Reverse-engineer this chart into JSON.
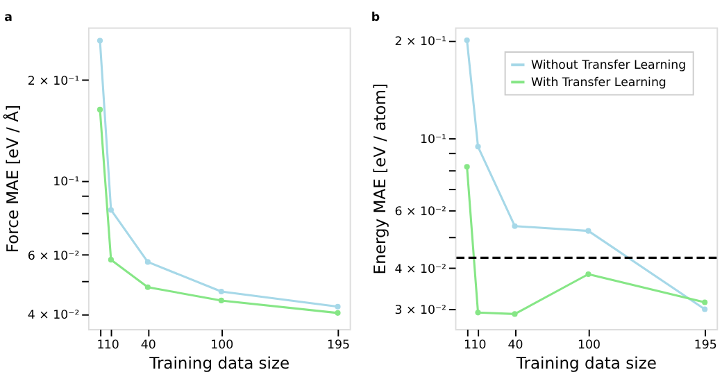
{
  "chart_data": [
    {
      "type": "line",
      "title": "a",
      "xlabel": "Training data size",
      "ylabel": "Force MAE [eV / Å]",
      "log": "y",
      "grid": false,
      "marker": "circle",
      "line_style": "solid",
      "x": [
        1,
        10,
        40,
        100,
        195
      ],
      "xlim": [
        -8.7,
        204.7
      ],
      "xticks": [
        1,
        10,
        40,
        100,
        195
      ],
      "ylim": [
        0.036,
        0.287
      ],
      "yticks": [
        {
          "value": 0.2,
          "label": "2 × 10⁻¹"
        },
        {
          "value": 0.1,
          "label": "10⁻¹"
        },
        {
          "value": 0.09,
          "label": null
        },
        {
          "value": 0.08,
          "label": null
        },
        {
          "value": 0.07,
          "label": null
        },
        {
          "value": 0.06,
          "label": "6 × 10⁻²"
        },
        {
          "value": 0.05,
          "label": null
        },
        {
          "value": 0.04,
          "label": "4 × 10⁻²"
        }
      ],
      "series": [
        {
          "color": "#a6d8e8",
          "values": [
            0.262,
            0.0817,
            0.0571,
            0.0466,
            0.042
          ]
        },
        {
          "color": "#86e686",
          "values": [
            0.163,
            0.058,
            0.048,
            0.0438,
            0.0402
          ]
        }
      ]
    },
    {
      "type": "line",
      "title": "b",
      "xlabel": "Training data size",
      "ylabel": "Energy MAE [eV / atom]",
      "log": "y",
      "grid": false,
      "marker": "circle",
      "line_style": "solid",
      "legend": "top right",
      "x": [
        1,
        10,
        40,
        100,
        195
      ],
      "xlim": [
        -8.7,
        204.7
      ],
      "xticks": [
        1,
        10,
        40,
        100,
        195
      ],
      "ylim": [
        0.026,
        0.219
      ],
      "yticks": [
        {
          "value": 0.2,
          "label": "2 × 10⁻¹"
        },
        {
          "value": 0.1,
          "label": "10⁻¹"
        },
        {
          "value": 0.09,
          "label": null
        },
        {
          "value": 0.08,
          "label": null
        },
        {
          "value": 0.07,
          "label": null
        },
        {
          "value": 0.06,
          "label": "6 × 10⁻²"
        },
        {
          "value": 0.05,
          "label": null
        },
        {
          "value": 0.04,
          "label": "4 × 10⁻²"
        },
        {
          "value": 0.03,
          "label": "3 × 10⁻²"
        }
      ],
      "series": [
        {
          "name": "Without Transfer Learning",
          "color": "#a6d8e8",
          "values": [
            0.2,
            0.0943,
            0.0538,
            0.052,
            0.0299
          ]
        },
        {
          "name": "With Transfer Learning",
          "color": "#86e686",
          "values": [
            0.0818,
            0.0292,
            0.0289,
            0.0383,
            0.0314
          ]
        }
      ],
      "ref_lines": [
        {
          "axis": "y",
          "value": 0.043,
          "color": "#000000",
          "line_style": "dashed"
        }
      ]
    }
  ]
}
